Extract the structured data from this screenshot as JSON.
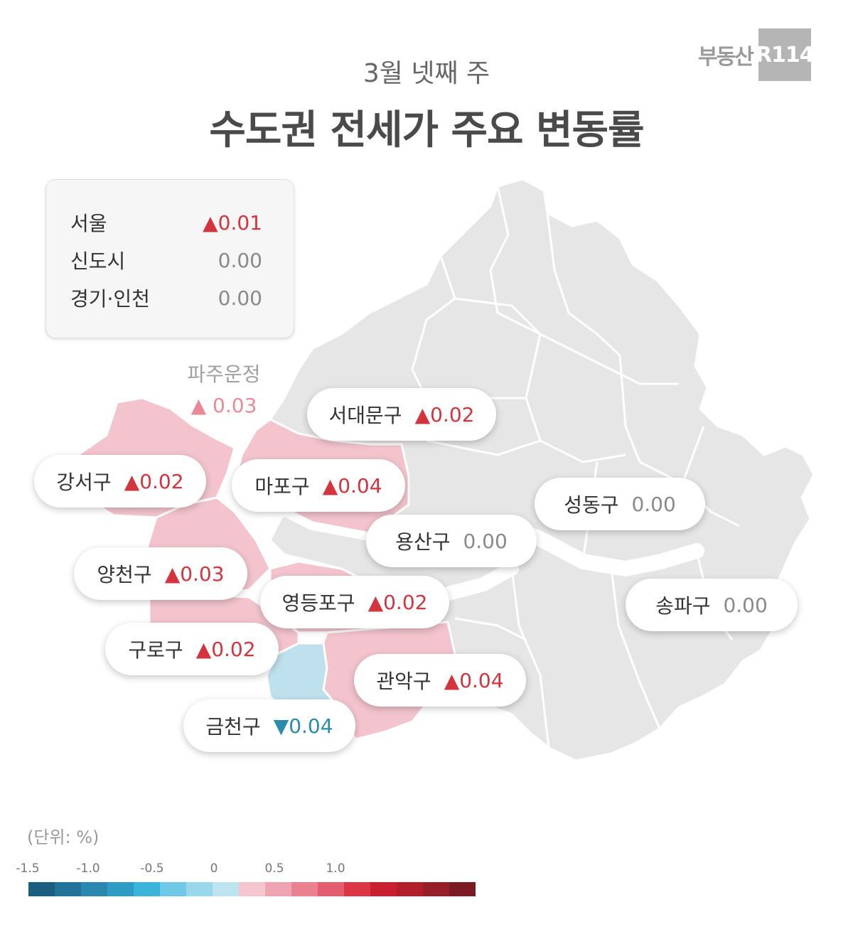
{
  "logo": {
    "word": "부동산",
    "box": "R114"
  },
  "header": {
    "subtitle": "3월 넷째 주",
    "title": "수도권 전세가 주요 변동률"
  },
  "summary": [
    {
      "label": "서울",
      "value": "▲0.01",
      "dir": "up"
    },
    {
      "label": "신도시",
      "value": "0.00",
      "dir": "flat"
    },
    {
      "label": "경기·인천",
      "value": "0.00",
      "dir": "flat"
    }
  ],
  "paju": {
    "name": "파주운정",
    "value": "▲ 0.03"
  },
  "districts": [
    {
      "name": "서대문구",
      "value": "▲0.02",
      "dir": "up"
    },
    {
      "name": "강서구",
      "value": "▲0.02",
      "dir": "up"
    },
    {
      "name": "마포구",
      "value": "▲0.04",
      "dir": "up"
    },
    {
      "name": "성동구",
      "value": "0.00",
      "dir": "flat"
    },
    {
      "name": "용산구",
      "value": "0.00",
      "dir": "flat"
    },
    {
      "name": "양천구",
      "value": "▲0.03",
      "dir": "up"
    },
    {
      "name": "영등포구",
      "value": "▲0.02",
      "dir": "up"
    },
    {
      "name": "송파구",
      "value": "0.00",
      "dir": "flat"
    },
    {
      "name": "구로구",
      "value": "▲0.02",
      "dir": "up"
    },
    {
      "name": "관악구",
      "value": "▲0.04",
      "dir": "up"
    },
    {
      "name": "금천구",
      "value": "▼0.04",
      "dir": "down"
    }
  ],
  "legend": {
    "unit": "(단위:  %)",
    "ticks": [
      "-1.5",
      "-1.0",
      "-0.5",
      "0",
      "0.5",
      "1.0"
    ],
    "colors": [
      "#1c5e80",
      "#22739a",
      "#2a88ae",
      "#2f9cc6",
      "#3bb4dc",
      "#6fc8e6",
      "#98d7ec",
      "#bfe4f1",
      "#f5c6cf",
      "#f0a3b0",
      "#ea8191",
      "#e45d6f",
      "#dc3545",
      "#c8202f",
      "#b01f2b",
      "#96202a",
      "#7b1a22"
    ],
    "fill_up": "#f3c4cd",
    "fill_down": "#bfe1ee",
    "fill_neutral": "#e6e6e6"
  }
}
